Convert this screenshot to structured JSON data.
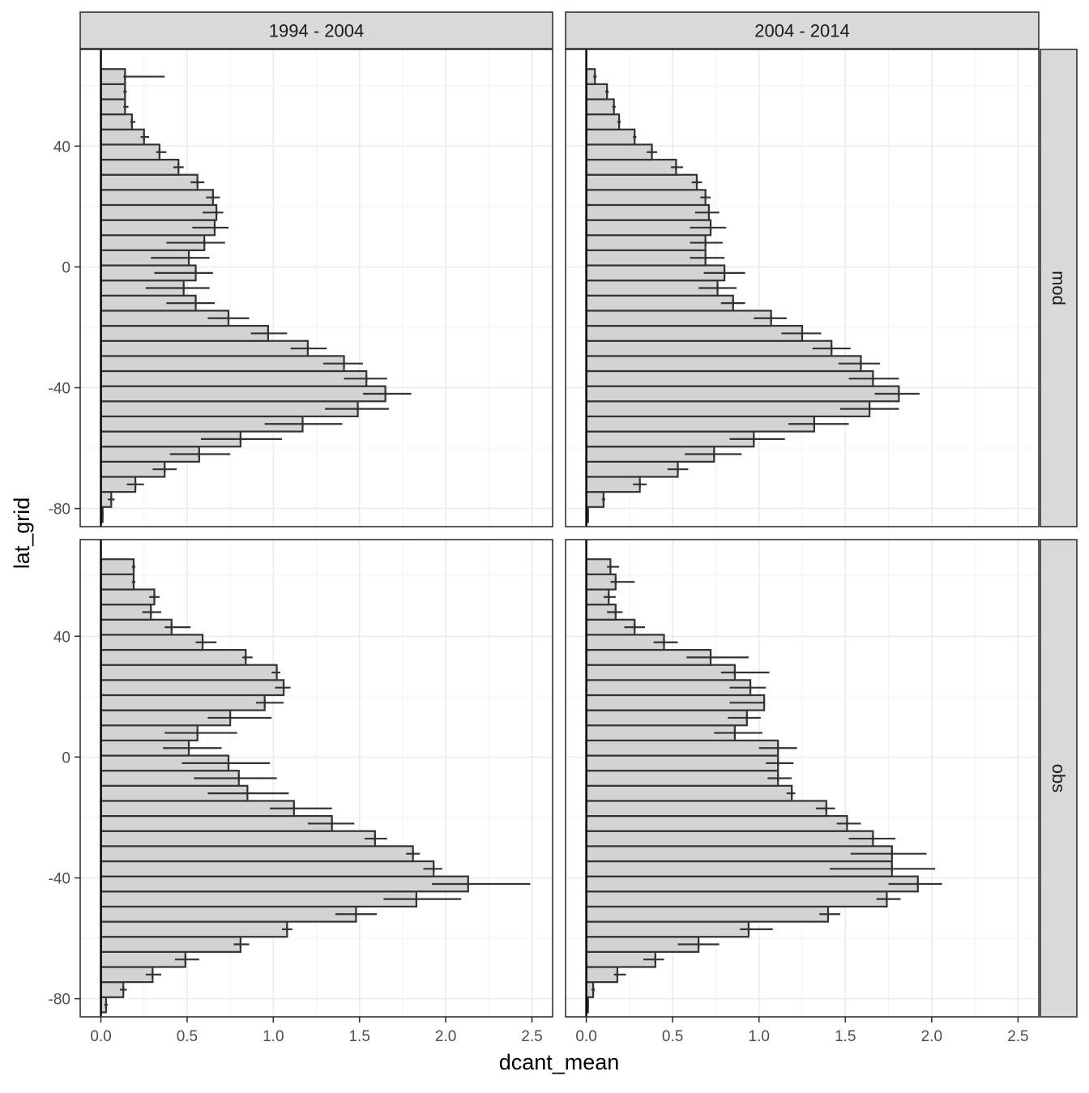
{
  "chart_data": {
    "type": "bar",
    "orientation": "horizontal",
    "xlabel": "dcant_mean",
    "ylabel": "lat_grid",
    "xlim": [
      -0.12,
      2.62
    ],
    "ylim": [
      -86,
      72
    ],
    "x_ticks": [
      0,
      0.5,
      1,
      1.5,
      2,
      2.5
    ],
    "x_tick_labels": [
      "0.0",
      "0.5",
      "1.0",
      "1.5",
      "2.0",
      "2.5"
    ],
    "y_ticks": [
      -80,
      -40,
      0,
      40
    ],
    "y_tick_labels": [
      "-80",
      "-40",
      "0",
      "40"
    ],
    "grid": true,
    "facet_cols": [
      "1994 - 2004",
      "2004 - 2014"
    ],
    "facet_rows": [
      "mod",
      "obs"
    ],
    "lat_grid": [
      -82,
      -77,
      -72,
      -67,
      -62,
      -57,
      -52,
      -47,
      -42,
      -37,
      -32,
      -27,
      -22,
      -17,
      -12,
      -7,
      -2,
      3,
      8,
      13,
      18,
      23,
      28,
      33,
      38,
      43,
      48,
      53,
      58,
      63
    ],
    "panels": [
      {
        "col": "1994 - 2004",
        "row": "mod",
        "values": [
          0.01,
          0.06,
          0.2,
          0.37,
          0.57,
          0.81,
          1.17,
          1.49,
          1.65,
          1.54,
          1.41,
          1.2,
          0.97,
          0.74,
          0.55,
          0.48,
          0.55,
          0.51,
          0.6,
          0.66,
          0.67,
          0.65,
          0.56,
          0.45,
          0.34,
          0.25,
          0.18,
          0.14,
          0.14,
          0.14
        ],
        "err_low": [
          0.01,
          0.04,
          0.15,
          0.3,
          0.4,
          0.58,
          0.95,
          1.3,
          1.52,
          1.41,
          1.29,
          1.1,
          0.87,
          0.62,
          0.38,
          0.26,
          0.31,
          0.29,
          0.38,
          0.53,
          0.59,
          0.61,
          0.52,
          0.42,
          0.32,
          0.23,
          0.17,
          0.13,
          0.13,
          0.13
        ],
        "err_high": [
          0.01,
          0.08,
          0.25,
          0.44,
          0.75,
          1.05,
          1.4,
          1.67,
          1.8,
          1.66,
          1.52,
          1.31,
          1.08,
          0.86,
          0.66,
          0.63,
          0.65,
          0.63,
          0.72,
          0.74,
          0.71,
          0.69,
          0.6,
          0.48,
          0.38,
          0.28,
          0.2,
          0.16,
          0.15,
          0.37
        ]
      },
      {
        "col": "2004 - 2014",
        "row": "mod",
        "values": [
          0.01,
          0.1,
          0.31,
          0.53,
          0.74,
          0.97,
          1.32,
          1.64,
          1.81,
          1.66,
          1.59,
          1.42,
          1.25,
          1.07,
          0.85,
          0.76,
          0.8,
          0.69,
          0.69,
          0.72,
          0.71,
          0.69,
          0.64,
          0.52,
          0.38,
          0.28,
          0.19,
          0.16,
          0.12,
          0.05
        ],
        "err_low": [
          0.01,
          0.09,
          0.27,
          0.47,
          0.57,
          0.83,
          1.17,
          1.47,
          1.67,
          1.52,
          1.46,
          1.31,
          1.13,
          0.97,
          0.78,
          0.65,
          0.68,
          0.6,
          0.6,
          0.6,
          0.63,
          0.66,
          0.61,
          0.49,
          0.35,
          0.27,
          0.18,
          0.15,
          0.11,
          0.04
        ],
        "err_high": [
          0.01,
          0.11,
          0.35,
          0.59,
          0.9,
          1.15,
          1.52,
          1.81,
          1.93,
          1.81,
          1.7,
          1.53,
          1.36,
          1.16,
          0.92,
          0.87,
          0.92,
          0.8,
          0.79,
          0.81,
          0.77,
          0.72,
          0.67,
          0.56,
          0.41,
          0.29,
          0.2,
          0.17,
          0.13,
          0.06
        ]
      },
      {
        "col": "1994 - 2004",
        "row": "obs",
        "values": [
          0.03,
          0.13,
          0.3,
          0.49,
          0.81,
          1.08,
          1.48,
          1.83,
          2.13,
          1.93,
          1.81,
          1.59,
          1.34,
          1.12,
          0.85,
          0.8,
          0.74,
          0.51,
          0.56,
          0.75,
          0.95,
          1.06,
          1.02,
          0.84,
          0.59,
          0.41,
          0.29,
          0.31,
          0.19,
          0.19
        ],
        "err_low": [
          0.02,
          0.11,
          0.26,
          0.43,
          0.77,
          1.05,
          1.36,
          1.64,
          1.92,
          1.87,
          1.77,
          1.53,
          1.2,
          0.98,
          0.62,
          0.54,
          0.47,
          0.36,
          0.37,
          0.62,
          0.9,
          1.01,
          0.99,
          0.82,
          0.55,
          0.37,
          0.24,
          0.28,
          0.18,
          0.18
        ],
        "err_high": [
          0.04,
          0.15,
          0.35,
          0.57,
          0.86,
          1.11,
          1.6,
          2.09,
          2.49,
          1.98,
          1.85,
          1.66,
          1.47,
          1.34,
          1.09,
          1.02,
          0.98,
          0.7,
          0.79,
          0.99,
          1.06,
          1.1,
          1.04,
          0.88,
          0.67,
          0.52,
          0.35,
          0.34,
          0.2,
          0.2
        ]
      },
      {
        "col": "2004 - 2014",
        "row": "obs",
        "values": [
          0.01,
          0.04,
          0.18,
          0.4,
          0.65,
          0.94,
          1.4,
          1.74,
          1.92,
          1.77,
          1.77,
          1.66,
          1.51,
          1.39,
          1.19,
          1.11,
          1.11,
          1.11,
          0.86,
          0.93,
          1.03,
          0.95,
          0.86,
          0.72,
          0.45,
          0.28,
          0.17,
          0.13,
          0.17,
          0.14
        ],
        "err_low": [
          0.01,
          0.03,
          0.16,
          0.33,
          0.53,
          0.89,
          1.35,
          1.68,
          1.75,
          1.41,
          1.53,
          1.52,
          1.45,
          1.33,
          1.16,
          1.05,
          1.04,
          1.0,
          0.74,
          0.82,
          0.83,
          0.83,
          0.78,
          0.58,
          0.39,
          0.22,
          0.12,
          0.1,
          0.14,
          0.12
        ],
        "err_high": [
          0.01,
          0.05,
          0.23,
          0.45,
          0.77,
          1.08,
          1.47,
          1.82,
          2.06,
          2.02,
          1.97,
          1.79,
          1.59,
          1.44,
          1.21,
          1.19,
          1.2,
          1.22,
          1.02,
          1.01,
          1.03,
          1.04,
          1.06,
          0.94,
          0.53,
          0.34,
          0.21,
          0.17,
          0.28,
          0.19
        ]
      }
    ]
  }
}
